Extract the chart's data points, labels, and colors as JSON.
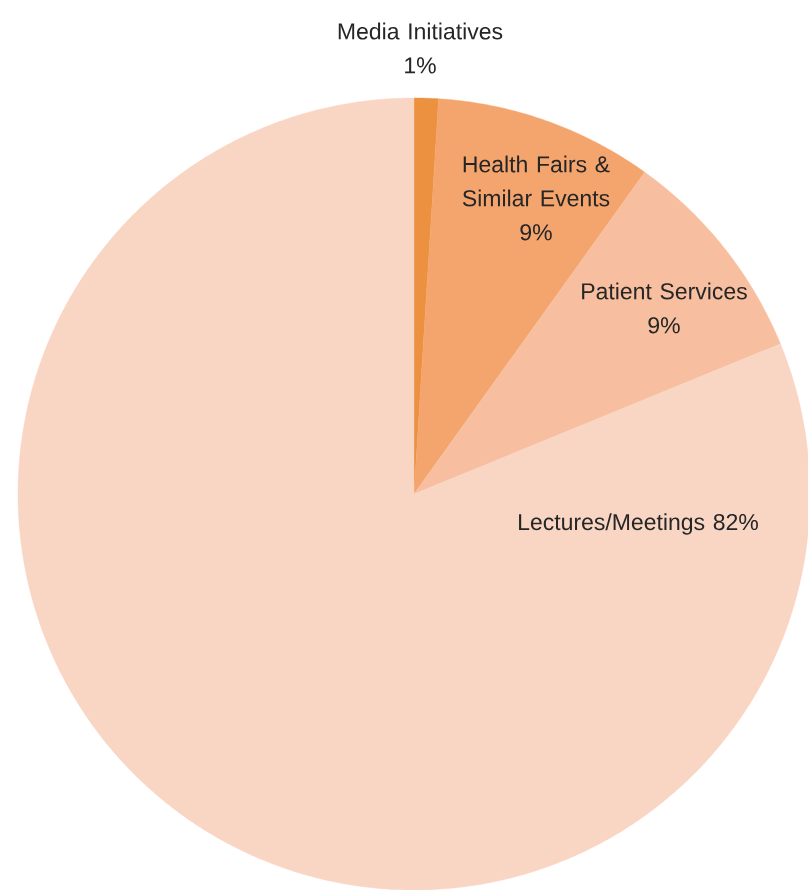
{
  "chart_data": {
    "type": "pie",
    "categories": [
      "Media Initiatives",
      "Health Fairs & Similar Events",
      "Patient Services",
      "Lectures/Meetings"
    ],
    "values": [
      1,
      9,
      9,
      82
    ],
    "value_labels": [
      "1%",
      "9%",
      "9%",
      "82%"
    ],
    "colors": [
      "#ec913f",
      "#f4a56e",
      "#f7bf9f",
      "#f9d5c3"
    ]
  }
}
